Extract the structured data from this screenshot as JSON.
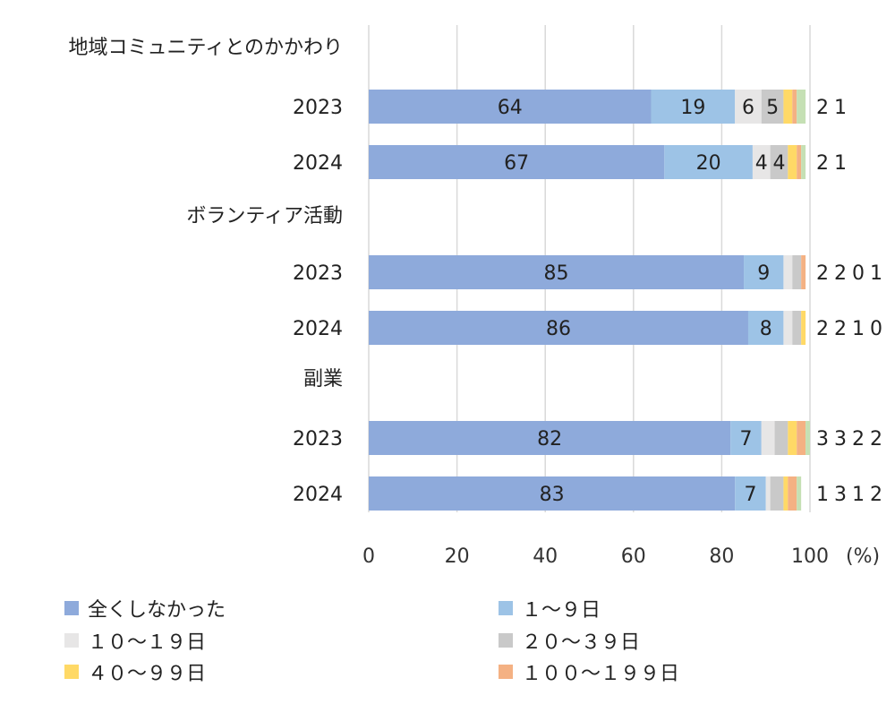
{
  "chart_data": {
    "type": "bar",
    "orientation": "horizontal",
    "stacked": true,
    "unit_label": "(%)",
    "xlim": [
      0,
      100
    ],
    "xticks": [
      0,
      20,
      40,
      60,
      80,
      100
    ],
    "grid": true,
    "legend_position": "bottom",
    "groups": [
      {
        "label": "地域コミュニティとのかかわり",
        "rows": [
          {
            "label": "2023",
            "values": [
              64,
              19,
              6,
              5,
              2,
              1,
              2
            ]
          },
          {
            "label": "2024",
            "values": [
              67,
              20,
              4,
              4,
              2,
              1,
              1
            ]
          }
        ]
      },
      {
        "label": "ボランティア活動",
        "rows": [
          {
            "label": "2023",
            "values": [
              85,
              9,
              2,
              2,
              0,
              1,
              0
            ]
          },
          {
            "label": "2024",
            "values": [
              86,
              8,
              2,
              2,
              1,
              0,
              0
            ]
          }
        ]
      },
      {
        "label": "副業",
        "rows": [
          {
            "label": "2023",
            "values": [
              82,
              7,
              3,
              3,
              2,
              2,
              1
            ]
          },
          {
            "label": "2024",
            "values": [
              83,
              7,
              1,
              3,
              1,
              2,
              1
            ]
          }
        ]
      }
    ],
    "series": [
      {
        "name": "全くしなかった",
        "color": "#8eaadb"
      },
      {
        "name": "１～９日",
        "color": "#9dc3e6"
      },
      {
        "name": "１０～１９日",
        "color": "#e7e6e6"
      },
      {
        "name": "２０～３９日",
        "color": "#c9c9c9"
      },
      {
        "name": "４０～９９日",
        "color": "#ffd966"
      },
      {
        "name": "１００～１９９日",
        "color": "#f4b183"
      },
      {
        "name": "",
        "color": "#c5e0b4"
      }
    ]
  }
}
